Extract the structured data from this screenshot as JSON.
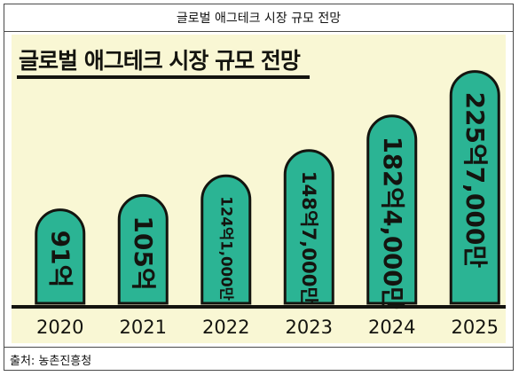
{
  "header": {
    "title": "글로벌 애그테크 시장 규모 전망"
  },
  "source": {
    "text": "출처: 농촌진흥청"
  },
  "colors": {
    "bar": "#2bb494",
    "bar_stroke": "#14140f",
    "panel_bg": "#f9f7d4",
    "text": "#14140f"
  },
  "chart_data": {
    "type": "bar",
    "title": "글로벌 애그테크 시장 규모 전망",
    "xlabel": "",
    "ylabel": "",
    "unit": "억",
    "categories": [
      "2020",
      "2021",
      "2022",
      "2023",
      "2024",
      "2025"
    ],
    "values": [
      91,
      105,
      124.1,
      148.7,
      182.4,
      225.7
    ],
    "value_labels": [
      "91억",
      "105억",
      "124억1,000만",
      "148억7,000만",
      "182억4,000만",
      "225억7,000만"
    ],
    "ylim": [
      0,
      240
    ],
    "grid": false,
    "legend": "none"
  }
}
